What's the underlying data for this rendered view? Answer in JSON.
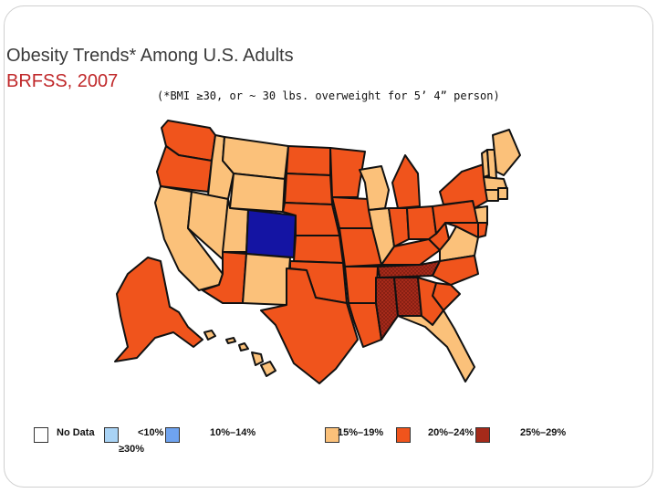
{
  "slide": {
    "title_line1": "Obesity Trends* Among U.S. Adults",
    "title_line2": "BRFSS, 2007",
    "subtitle": "(*BMI ≥30, or ~ 30 lbs. overweight for 5’ 4” person)"
  },
  "colors": {
    "no_data": "#ffffff",
    "lt10": "#a9d3f5",
    "r10_14": "#6fa3ef",
    "r15_19": "#fbc17a",
    "r20_24": "#f0541c",
    "r25_29": "#a52a1a",
    "ge30": "#b0281f",
    "colorado": "#1414a3",
    "outline": "#111111",
    "title_red": "#c0282a"
  },
  "legend": {
    "items": [
      {
        "label": "No Data",
        "color": "#ffffff"
      },
      {
        "label": "<10%",
        "color": "#a9d3f5"
      },
      {
        "label": "10%–14%",
        "color": "#6fa3ef"
      },
      {
        "label": "15%–19%",
        "color": "#fbc17a"
      },
      {
        "label": "20%–24%",
        "color": "#f0541c"
      },
      {
        "label": "25%–29%",
        "color": "#a52a1a"
      },
      {
        "label": "≥30%",
        "color": "#b0281f"
      }
    ]
  },
  "map": {
    "states": [
      {
        "name": "WA",
        "category": "20-24"
      },
      {
        "name": "OR",
        "category": "20-24"
      },
      {
        "name": "CA",
        "category": "15-19"
      },
      {
        "name": "ID",
        "category": "15-19"
      },
      {
        "name": "NV",
        "category": "15-19"
      },
      {
        "name": "MT",
        "category": "15-19"
      },
      {
        "name": "WY",
        "category": "15-19"
      },
      {
        "name": "UT",
        "category": "15-19"
      },
      {
        "name": "CO",
        "category": "10-14"
      },
      {
        "name": "AZ",
        "category": "20-24"
      },
      {
        "name": "NM",
        "category": "15-19"
      },
      {
        "name": "ND",
        "category": "20-24"
      },
      {
        "name": "SD",
        "category": "20-24"
      },
      {
        "name": "NE",
        "category": "20-24"
      },
      {
        "name": "KS",
        "category": "20-24"
      },
      {
        "name": "OK",
        "category": "20-24"
      },
      {
        "name": "TX",
        "category": "20-24"
      },
      {
        "name": "MN",
        "category": "20-24"
      },
      {
        "name": "IA",
        "category": "20-24"
      },
      {
        "name": "MO",
        "category": "20-24"
      },
      {
        "name": "AR",
        "category": "20-24"
      },
      {
        "name": "LA",
        "category": "20-24"
      },
      {
        "name": "WI",
        "category": "15-19"
      },
      {
        "name": "IL",
        "category": "15-19"
      },
      {
        "name": "MI",
        "category": "20-24"
      },
      {
        "name": "IN",
        "category": "20-24"
      },
      {
        "name": "KY",
        "category": "20-24"
      },
      {
        "name": "TN",
        "category": "30+"
      },
      {
        "name": "MS",
        "category": "30+"
      },
      {
        "name": "AL",
        "category": "30+"
      },
      {
        "name": "OH",
        "category": "20-24"
      },
      {
        "name": "WV",
        "category": "20-24"
      },
      {
        "name": "VA",
        "category": "15-19"
      },
      {
        "name": "NC",
        "category": "20-24"
      },
      {
        "name": "SC",
        "category": "20-24"
      },
      {
        "name": "GA",
        "category": "20-24"
      },
      {
        "name": "FL",
        "category": "15-19"
      },
      {
        "name": "PA",
        "category": "20-24"
      },
      {
        "name": "NY",
        "category": "20-24"
      },
      {
        "name": "NJ",
        "category": "15-19"
      },
      {
        "name": "MD",
        "category": "20-24"
      },
      {
        "name": "DE",
        "category": "20-24"
      },
      {
        "name": "VT",
        "category": "15-19"
      },
      {
        "name": "NH",
        "category": "15-19"
      },
      {
        "name": "MA",
        "category": "15-19"
      },
      {
        "name": "CT",
        "category": "15-19"
      },
      {
        "name": "RI",
        "category": "15-19"
      },
      {
        "name": "ME",
        "category": "15-19"
      },
      {
        "name": "AK",
        "category": "20-24"
      },
      {
        "name": "HI",
        "category": "15-19"
      }
    ]
  }
}
